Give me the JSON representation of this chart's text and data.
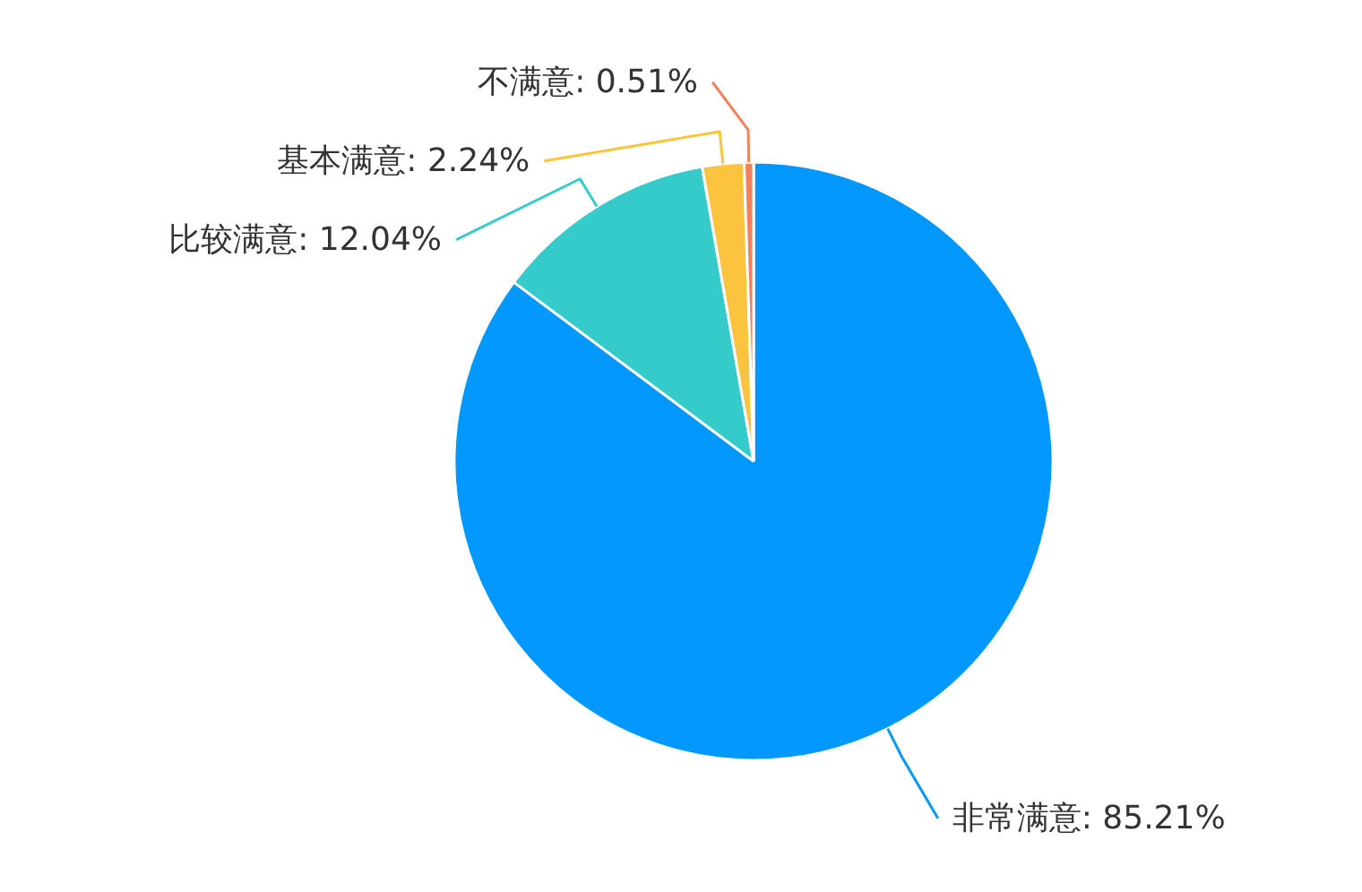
{
  "chart_data": {
    "type": "pie",
    "categories": [
      "非常满意",
      "比较满意",
      "基本满意",
      "不满意"
    ],
    "values": [
      85.21,
      12.04,
      2.24,
      0.51
    ],
    "colors": [
      "#0398fe",
      "#36cbcb",
      "#fbc33e",
      "#f2825d"
    ],
    "value_labels": [
      "85.21%",
      "12.04%",
      "2.24%",
      "0.51%"
    ]
  }
}
